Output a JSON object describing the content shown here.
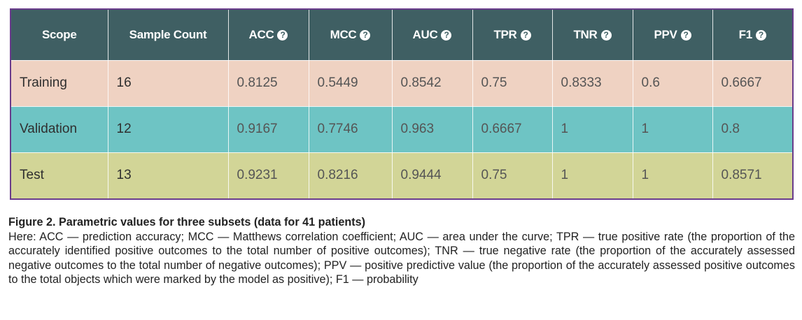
{
  "table": {
    "headers": [
      {
        "label": "Scope",
        "help": false
      },
      {
        "label": "Sample Count",
        "help": false
      },
      {
        "label": "ACC",
        "help": true
      },
      {
        "label": "MCC",
        "help": true
      },
      {
        "label": "AUC",
        "help": true
      },
      {
        "label": "TPR",
        "help": true
      },
      {
        "label": "TNR",
        "help": true
      },
      {
        "label": "PPV",
        "help": true
      },
      {
        "label": "F1",
        "help": true
      }
    ],
    "help_glyph": "?",
    "rows": [
      {
        "name": "Training",
        "bg": "#efd2c2",
        "cells": [
          "Training",
          "16",
          "0.8125",
          "0.5449",
          "0.8542",
          "0.75",
          "0.8333",
          "0.6",
          "0.6667"
        ]
      },
      {
        "name": "Validation",
        "bg": "#6ec4c4",
        "cells": [
          "Validation",
          "12",
          "0.9167",
          "0.7746",
          "0.963",
          "0.6667",
          "1",
          "1",
          "0.8"
        ]
      },
      {
        "name": "Test",
        "bg": "#d2d597",
        "cells": [
          "Test",
          "13",
          "0.9231",
          "0.8216",
          "0.9444",
          "0.75",
          "1",
          "1",
          "0.8571"
        ]
      }
    ],
    "colors": {
      "header_bg": "#3f5f63",
      "frame": "#6a3c8c"
    }
  },
  "caption": {
    "title": "Figure 2. Parametric values for three subsets (data for 41 patients)",
    "text": "Here: ACC — prediction accuracy; MCC — Matthews correlation coefficient; AUC — area under the curve; TPR — true positive rate (the proportion of the accurately identified positive outcomes to the total number of positive outcomes); TNR — true negative rate (the proportion of the accurately assessed negative outcomes to the total number of negative outcomes); PPV — positive predictive value (the proportion of the accurately assessed positive outcomes to the total objects which were marked by the model as positive); F1 — probability"
  }
}
